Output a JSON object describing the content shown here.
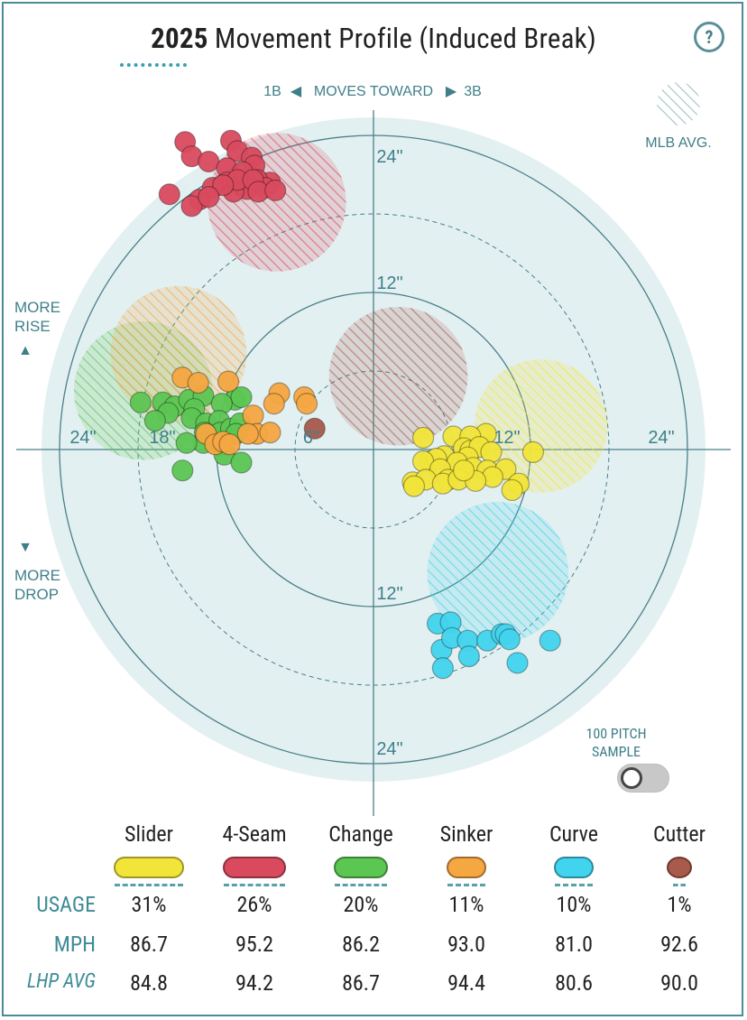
{
  "header": {
    "year": "2025",
    "title": "Movement Profile (Induced Break)",
    "help_label": "?"
  },
  "direction": {
    "left": "1B",
    "center": "MOVES TOWARD",
    "right": "3B",
    "left_arrow": "◀",
    "right_arrow": "▶"
  },
  "legend_mlb": "MLB AVG.",
  "side_labels": {
    "rise": "MORE\nRISE",
    "rise_arrow": "▲",
    "drop": "MORE\nDROP",
    "drop_arrow": "▼"
  },
  "sample_toggle": {
    "label": "100 PITCH\nSAMPLE",
    "state": "off"
  },
  "chart_data": {
    "type": "scatter",
    "x_unit": "inches horizontal break",
    "y_unit": "inches induced vertical break",
    "rings": [
      12,
      24
    ],
    "dashed_rings": [
      6,
      18
    ],
    "ring_labels": [
      "24\"",
      "18\"",
      "6\"",
      "12\"",
      "24\"",
      "24\"",
      "12\"",
      "12\"",
      "24\""
    ],
    "series": [
      {
        "name": "Slider",
        "color": "#f2e53a",
        "mlb_avg": {
          "x": 12.8,
          "y": 1.8,
          "r": 5.1
        },
        "points": [
          [
            3.8,
            0.9
          ],
          [
            6.1,
            1.0
          ],
          [
            8.6,
            1.2
          ],
          [
            7.4,
            1.0
          ],
          [
            6.9,
            0.1
          ],
          [
            7.4,
            -0.1
          ],
          [
            8.1,
            0.2
          ],
          [
            7.2,
            -0.6
          ],
          [
            5.4,
            -0.5
          ],
          [
            4.3,
            -0.9
          ],
          [
            4.8,
            -0.7
          ],
          [
            3.8,
            -0.9
          ],
          [
            6.4,
            -1.0
          ],
          [
            9.0,
            -0.2
          ],
          [
            12.2,
            -0.2
          ],
          [
            7.6,
            -1.4
          ],
          [
            5.1,
            -1.5
          ],
          [
            8.7,
            -1.6
          ],
          [
            10.1,
            -1.5
          ],
          [
            9.1,
            -2.1
          ],
          [
            5.7,
            -2.3
          ],
          [
            3.0,
            -2.5
          ],
          [
            4.0,
            -2.3
          ],
          [
            5.3,
            -2.6
          ],
          [
            6.5,
            -2.3
          ],
          [
            7.8,
            -2.4
          ],
          [
            11.1,
            -2.6
          ],
          [
            10.6,
            -3.1
          ],
          [
            3.1,
            -2.8
          ],
          [
            6.9,
            -1.6
          ]
        ]
      },
      {
        "name": "4-Seam",
        "color": "#d94a5e",
        "mlb_avg": {
          "x": -7.4,
          "y": 18.9,
          "r": 5.3
        },
        "points": [
          [
            -14.4,
            23.5
          ],
          [
            -13.9,
            22.4
          ],
          [
            -12.6,
            22.0
          ],
          [
            -10.9,
            23.6
          ],
          [
            -10.4,
            22.8
          ],
          [
            -9.3,
            22.3
          ],
          [
            -9.1,
            21.7
          ],
          [
            -11.2,
            21.5
          ],
          [
            -10.0,
            21.2
          ],
          [
            -7.9,
            20.4
          ],
          [
            -8.9,
            20.6
          ],
          [
            -11.2,
            20.4
          ],
          [
            -15.6,
            19.5
          ],
          [
            -12.3,
            20.0
          ],
          [
            -10.0,
            20.1
          ],
          [
            -9.7,
            19.9
          ],
          [
            -13.3,
            19.1
          ],
          [
            -8.3,
            20.0
          ],
          [
            -10.7,
            19.7
          ],
          [
            -13.9,
            18.6
          ],
          [
            -10.4,
            20.6
          ],
          [
            -11.5,
            20.2
          ],
          [
            -9.2,
            20.6
          ],
          [
            -12.6,
            19.3
          ],
          [
            -8.8,
            19.7
          ],
          [
            -7.5,
            19.8
          ]
        ]
      },
      {
        "name": "Change",
        "color": "#5cc653",
        "mlb_avg": {
          "x": -17.6,
          "y": 4.5,
          "r": 5.3
        },
        "points": [
          [
            -17.8,
            3.6
          ],
          [
            -16.1,
            3.6
          ],
          [
            -15.2,
            3.3
          ],
          [
            -14.1,
            3.8
          ],
          [
            -13.0,
            4.1
          ],
          [
            -10.6,
            3.8
          ],
          [
            -10.1,
            4.0
          ],
          [
            -11.6,
            3.5
          ],
          [
            -15.7,
            2.8
          ],
          [
            -13.7,
            3.1
          ],
          [
            -16.7,
            2.2
          ],
          [
            -13.9,
            2.4
          ],
          [
            -12.8,
            2.0
          ],
          [
            -11.8,
            2.2
          ],
          [
            -11.7,
            1.3
          ],
          [
            -10.9,
            1.6
          ],
          [
            -10.2,
            2.0
          ],
          [
            -12.9,
            1.3
          ],
          [
            -13.0,
            0.5
          ],
          [
            -11.6,
            0.3
          ],
          [
            -11.4,
            -0.4
          ],
          [
            -14.6,
            -1.6
          ],
          [
            -10.1,
            -1.0
          ],
          [
            -14.3,
            0.5
          ],
          [
            -10.5,
            1.2
          ]
        ]
      },
      {
        "name": "Sinker",
        "color": "#f5a742",
        "mlb_avg": {
          "x": -14.9,
          "y": 7.3,
          "r": 5.2
        },
        "points": [
          [
            -14.6,
            5.5
          ],
          [
            -13.4,
            5.1
          ],
          [
            -11.1,
            5.2
          ],
          [
            -7.2,
            4.3
          ],
          [
            -7.6,
            3.5
          ],
          [
            -9.2,
            2.6
          ],
          [
            -8.9,
            1.2
          ],
          [
            -9.6,
            1.2
          ],
          [
            -12.8,
            1.2
          ],
          [
            -12.1,
            0.4
          ],
          [
            -5.3,
            4.0
          ],
          [
            -5.1,
            3.5
          ],
          [
            -7.9,
            1.3
          ],
          [
            -11.5,
            0.6
          ],
          [
            -11.0,
            0.4
          ]
        ]
      },
      {
        "name": "Curve",
        "color": "#42d4ee",
        "mlb_avg": {
          "x": 9.5,
          "y": -9.4,
          "r": 5.4
        },
        "points": [
          [
            4.9,
            -13.3
          ],
          [
            5.9,
            -13.2
          ],
          [
            5.2,
            -15.3
          ],
          [
            6.0,
            -14.4
          ],
          [
            7.2,
            -14.6
          ],
          [
            8.7,
            -14.6
          ],
          [
            9.8,
            -14.1
          ],
          [
            10.1,
            -14.1
          ],
          [
            10.4,
            -14.5
          ],
          [
            13.5,
            -14.6
          ],
          [
            11.0,
            -16.3
          ],
          [
            7.3,
            -15.8
          ],
          [
            5.3,
            -16.7
          ]
        ]
      },
      {
        "name": "Cutter",
        "color": "#a85a4b",
        "mlb_avg": {
          "x": 1.9,
          "y": 5.6,
          "r": 5.3
        },
        "points": [
          [
            -4.5,
            1.6
          ]
        ]
      }
    ],
    "table": {
      "row_labels": [
        "USAGE",
        "MPH",
        "LHP AVG"
      ],
      "pitches": [
        "Slider",
        "4-Seam",
        "Change",
        "Sinker",
        "Curve",
        "Cutter"
      ],
      "usage": [
        "31%",
        "26%",
        "20%",
        "11%",
        "10%",
        "1%"
      ],
      "mph": [
        "86.7",
        "95.2",
        "86.2",
        "93.0",
        "81.0",
        "92.6"
      ],
      "lhp_avg": [
        "84.8",
        "94.2",
        "86.7",
        "94.4",
        "80.6",
        "90.0"
      ]
    }
  }
}
